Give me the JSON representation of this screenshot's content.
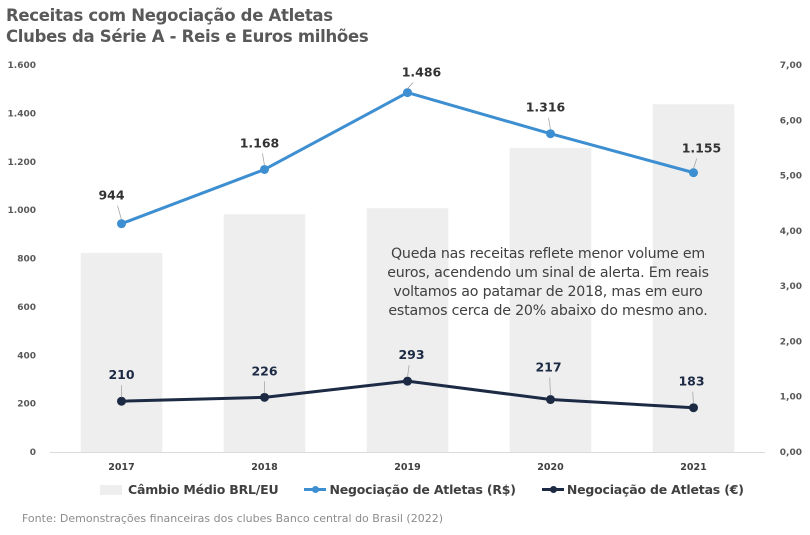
{
  "chart_data": {
    "type": "bar+line",
    "title": "Receitas com Negociação de Atletas",
    "subtitle": "Clubes da Série A - Reis e Euros milhões",
    "categories": [
      "2017",
      "2018",
      "2019",
      "2020",
      "2021"
    ],
    "y_left": {
      "range": [
        0,
        1600
      ],
      "ticks": [
        "0",
        "200",
        "400",
        "600",
        "800",
        "1.000",
        "1.200",
        "1.400",
        "1.600"
      ],
      "tick_values": [
        0,
        200,
        400,
        600,
        800,
        1000,
        1200,
        1400,
        1600
      ]
    },
    "y_right": {
      "range": [
        0,
        7
      ],
      "ticks": [
        "0,00",
        "1,00",
        "2,00",
        "3,00",
        "4,00",
        "5,00",
        "6,00",
        "7,00"
      ],
      "tick_values": [
        0,
        1,
        2,
        3,
        4,
        5,
        6,
        7
      ]
    },
    "series": [
      {
        "name": "Câmbio Médio BRL/EU",
        "type": "bar",
        "axis": "right",
        "color": "#eeeeee",
        "values": [
          3.6,
          4.3,
          4.41,
          5.5,
          6.29
        ]
      },
      {
        "name": "Negociação de Atletas (R$)",
        "type": "line",
        "axis": "left",
        "color": "#3d8fd1",
        "values": [
          944,
          1168,
          1486,
          1316,
          1155
        ],
        "labels": [
          "944",
          "1.168",
          "1.486",
          "1.316",
          "1.155"
        ]
      },
      {
        "name": "Negociação de Atletas (€)",
        "type": "line",
        "axis": "left",
        "color": "#1c2a44",
        "values": [
          210,
          226,
          293,
          217,
          183
        ],
        "labels": [
          "210",
          "226",
          "293",
          "217",
          "183"
        ]
      }
    ],
    "grid": false,
    "legend_position": "bottom"
  },
  "title_line1": "Receitas com Negociação de Atletas",
  "title_line2": "Clubes da Série A - Reis e Euros milhões",
  "annotation": "Queda nas receitas reflete menor volume em euros, acendendo um sinal de alerta. Em reais voltamos ao patamar de 2018, mas em euro estamos cerca de 20% abaixo do mesmo ano.",
  "legend": {
    "bar": "Câmbio Médio BRL/EU",
    "line_brl": "Negociação de Atletas (R$)",
    "line_eur": "Negociação de Atletas  (€)"
  },
  "source": "Fonte: Demonstrações  financeiras  dos clubes  Banco  central  do Brasil (2022)",
  "colors": {
    "bar": "#eeeeee",
    "line_brl": "#3d8fd1",
    "line_eur": "#1c2a44",
    "axis": "#d9d9d9"
  }
}
